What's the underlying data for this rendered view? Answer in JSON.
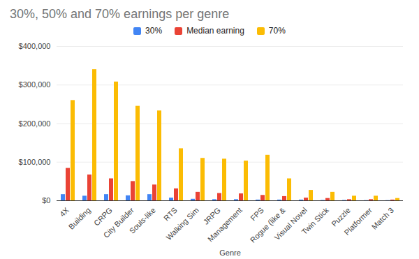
{
  "chart_data": {
    "type": "bar",
    "title": "30%, 50% and 70% earnings per genre",
    "xlabel": "Genre",
    "categories": [
      "4X",
      "Building",
      "CRPG",
      "City Builder",
      "Souls-like",
      "RTS",
      "Walking Sim",
      "JRPG",
      "Management",
      "FPS",
      "Rogue (like &",
      "Visual Novel",
      "Twin Stick",
      "Puzzle",
      "Platformer",
      "Match 3"
    ],
    "series": [
      {
        "name": "30%",
        "color": "#4285f4",
        "values": [
          16000,
          12000,
          16000,
          13000,
          16000,
          7000,
          4000,
          3000,
          3000,
          2000,
          2000,
          2000,
          1000,
          1000,
          500,
          500
        ]
      },
      {
        "name": "Median earning",
        "color": "#ea4335",
        "values": [
          84000,
          67000,
          57000,
          50000,
          41000,
          31000,
          22000,
          19000,
          18000,
          14000,
          11000,
          7000,
          6000,
          3000,
          3000,
          2000
        ]
      },
      {
        "name": "70%",
        "color": "#fbbc04",
        "values": [
          260000,
          340000,
          308000,
          245000,
          233000,
          135000,
          110000,
          108000,
          103000,
          118000,
          57000,
          27000,
          22000,
          12000,
          12000,
          6000
        ]
      }
    ],
    "ylim": [
      0,
      400000
    ],
    "yticks": [
      {
        "value": 0,
        "label": "$0"
      },
      {
        "value": 100000,
        "label": "$100,000"
      },
      {
        "value": 200000,
        "label": "$200,000"
      },
      {
        "value": 300000,
        "label": "$300,000"
      },
      {
        "value": 400000,
        "label": "$400,000"
      }
    ],
    "grid": true,
    "legend": "top"
  }
}
